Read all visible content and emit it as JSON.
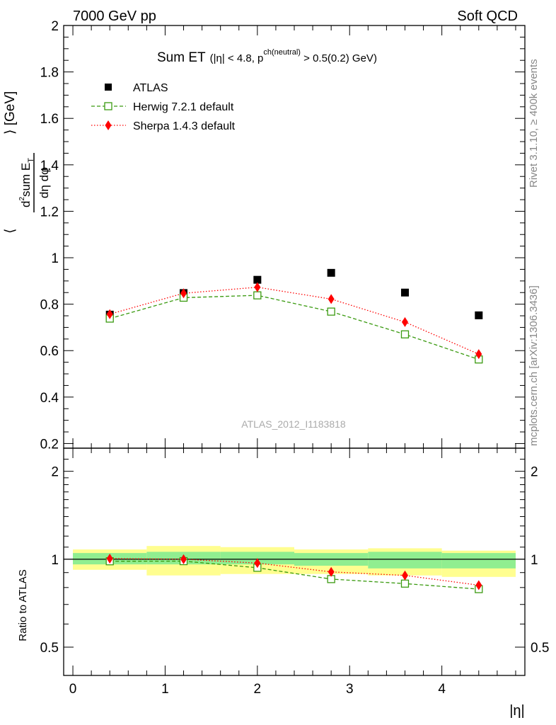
{
  "header": {
    "left": "7000 GeV pp",
    "right": "Soft QCD"
  },
  "title": {
    "main": "Sum ET",
    "cut_prefix": "(|η| < 4.8, p",
    "cut_superscript": "ch(neutral)",
    "cut_suffix": " > 0.5(0.2) GeV)"
  },
  "side_labels": {
    "rivet": "Rivet 3.1.10, ≥ 400k events",
    "mcplots": "mcplots.cern.ch [arXiv:1306.3436]"
  },
  "watermark": "ATLAS_2012_I1183818",
  "legend": [
    {
      "name": "ATLAS",
      "color": "#000000",
      "marker": "square-filled",
      "line": "none"
    },
    {
      "name": "Herwig 7.2.1 default",
      "color": "#3a9a10",
      "marker": "square-open",
      "line": "dashed"
    },
    {
      "name": "Sherpa 1.4.3 default",
      "color": "#ff0000",
      "marker": "diamond-filled",
      "line": "dotted"
    }
  ],
  "chart_data": [
    {
      "type": "scatter",
      "panel": "main",
      "ylabel": "⟨ d²sum E_T / dη dφ ⟩ [GeV]",
      "xlim": [
        -0.1,
        4.9
      ],
      "ylim": [
        0.18,
        2.0
      ],
      "yticks": [
        "0.2",
        "0.4",
        "0.6",
        "0.8",
        "1",
        "1.2",
        "1.4",
        "1.6",
        "1.8",
        "2"
      ],
      "x": [
        0.4,
        1.2,
        2.0,
        2.8,
        3.6,
        4.4
      ],
      "series": [
        {
          "name": "ATLAS",
          "values": [
            0.755,
            0.848,
            0.905,
            0.935,
            0.85,
            0.752
          ]
        },
        {
          "name": "Herwig 7.2.1 default",
          "values": [
            0.738,
            0.828,
            0.838,
            0.768,
            0.67,
            0.562
          ]
        },
        {
          "name": "Sherpa 1.4.3 default",
          "values": [
            0.757,
            0.847,
            0.873,
            0.822,
            0.723,
            0.585
          ]
        }
      ]
    },
    {
      "type": "line",
      "panel": "ratio",
      "ylabel": "Ratio to ATLAS",
      "xlabel": "|η|",
      "scale": "log",
      "ylim": [
        0.4,
        2.4
      ],
      "yticks": [
        "0.5",
        "1",
        "2"
      ],
      "xticks": [
        "0",
        "1",
        "2",
        "3",
        "4"
      ],
      "bins": [
        [
          0,
          0.8
        ],
        [
          0.8,
          1.6
        ],
        [
          1.6,
          2.4
        ],
        [
          2.4,
          3.2
        ],
        [
          3.2,
          4.0
        ],
        [
          4.0,
          4.8
        ]
      ],
      "band_stat_color": "#90ee90",
      "band_total_color": "#fffe90",
      "band_stat": [
        [
          0.96,
          1.05
        ],
        [
          0.96,
          1.06
        ],
        [
          0.96,
          1.06
        ],
        [
          0.95,
          1.05
        ],
        [
          0.93,
          1.06
        ],
        [
          0.93,
          1.05
        ]
      ],
      "band_total": [
        [
          0.92,
          1.08
        ],
        [
          0.88,
          1.11
        ],
        [
          0.89,
          1.1
        ],
        [
          0.89,
          1.08
        ],
        [
          0.88,
          1.09
        ],
        [
          0.87,
          1.07
        ]
      ],
      "x": [
        0.4,
        1.2,
        2.0,
        2.8,
        3.6,
        4.4
      ],
      "series": [
        {
          "name": "Herwig 7.2.1 default",
          "values": [
            0.984,
            0.985,
            0.935,
            0.855,
            0.825,
            0.79
          ]
        },
        {
          "name": "Sherpa 1.4.3 default",
          "values": [
            1.005,
            1.0,
            0.97,
            0.905,
            0.88,
            0.815
          ]
        }
      ]
    }
  ]
}
